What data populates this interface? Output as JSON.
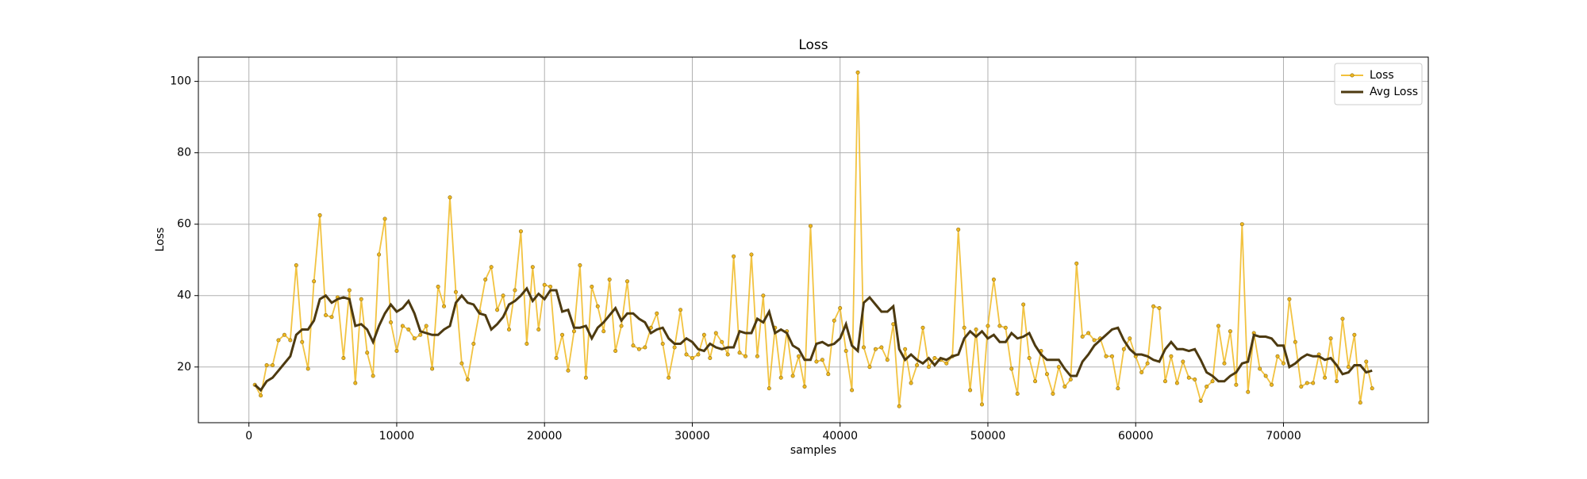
{
  "chart_data": {
    "type": "line",
    "title": "Loss",
    "x_label": "samples",
    "y_label": "Loss",
    "x": [
      400,
      800,
      1200,
      1600,
      2000,
      2400,
      2800,
      3200,
      3600,
      4000,
      4400,
      4800,
      5200,
      5600,
      6000,
      6400,
      6800,
      7200,
      7600,
      8000,
      8400,
      8800,
      9200,
      9600,
      10000,
      10400,
      10800,
      11200,
      11600,
      12000,
      12400,
      12800,
      13200,
      13600,
      14000,
      14400,
      14800,
      15200,
      15600,
      16000,
      16400,
      16800,
      17200,
      17600,
      18000,
      18400,
      18800,
      19200,
      19600,
      20000,
      20400,
      20800,
      21200,
      21600,
      22000,
      22400,
      22800,
      23200,
      23600,
      24000,
      24400,
      24800,
      25200,
      25600,
      26000,
      26400,
      26800,
      27200,
      27600,
      28000,
      28400,
      28800,
      29200,
      29600,
      30000,
      30400,
      30800,
      31200,
      31600,
      32000,
      32400,
      32800,
      33200,
      33600,
      34000,
      34400,
      34800,
      35200,
      35600,
      36000,
      36400,
      36800,
      37200,
      37600,
      38000,
      38400,
      38800,
      39200,
      39600,
      40000,
      40400,
      40800,
      41200,
      41600,
      42000,
      42400,
      42800,
      43200,
      43600,
      44000,
      44400,
      44800,
      45200,
      45600,
      46000,
      46400,
      46800,
      47200,
      47600,
      48000,
      48400,
      48800,
      49200,
      49600,
      50000,
      50400,
      50800,
      51200,
      51600,
      52000,
      52400,
      52800,
      53200,
      53600,
      54000,
      54400,
      54800,
      55200,
      55600,
      56000,
      56400,
      56800,
      57200,
      57600,
      58000,
      58400,
      58800,
      59200,
      59600,
      60000,
      60400,
      60800,
      61200,
      61600,
      62000,
      62400,
      62800,
      63200,
      63600,
      64000,
      64400,
      64800,
      65200,
      65600,
      66000,
      66400,
      66800,
      67200,
      67600,
      68000,
      68400,
      68800,
      69200,
      69600,
      70000,
      70400,
      70800,
      71200,
      71600,
      72000,
      72400,
      72800,
      73200,
      73600,
      74000,
      74400,
      74800,
      75200,
      75600,
      76000
    ],
    "series": [
      {
        "name": "Loss",
        "color": "#f0b820",
        "values": [
          15,
          12,
          20.5,
          20.5,
          27.5,
          29,
          27.5,
          48.5,
          27,
          19.5,
          44,
          62.5,
          34.5,
          34,
          39.5,
          22.5,
          41.5,
          15.5,
          39,
          24,
          17.5,
          51.5,
          61.5,
          32.5,
          24.5,
          31.5,
          30.5,
          28,
          29,
          31.5,
          19.5,
          42.5,
          37,
          67.5,
          41,
          21,
          16.5,
          26.5,
          35.5,
          44.5,
          48,
          36,
          40,
          30.5,
          41.5,
          58,
          26.5,
          48,
          30.5,
          43,
          42.5,
          22.5,
          29,
          19,
          30,
          48.5,
          17,
          42.5,
          37,
          30,
          44.5,
          24.5,
          31.5,
          44,
          26,
          25,
          25.5,
          31,
          35,
          26.5,
          17,
          25.5,
          36,
          23.5,
          22.5,
          23.5,
          29,
          22.5,
          29.5,
          27,
          23.5,
          51,
          24,
          23,
          51.5,
          23,
          40,
          14,
          31,
          17,
          30,
          17.5,
          23,
          14.5,
          59.5,
          21.5,
          22,
          18,
          33,
          36.5,
          24.5,
          13.5,
          102.5,
          25.5,
          20,
          25,
          25.5,
          22,
          32,
          9,
          25,
          15.5,
          20.5,
          31,
          20,
          22.5,
          22,
          21,
          23,
          58.5,
          31,
          13.5,
          30.5,
          9.5,
          31.5,
          44.5,
          31.5,
          31,
          19.5,
          12.5,
          37.5,
          22.5,
          16,
          24.5,
          18,
          12.5,
          20,
          14.5,
          16.5,
          49,
          28.5,
          29.5,
          27.5,
          28,
          23,
          23,
          14,
          25,
          28,
          23,
          18.5,
          21,
          37,
          36.5,
          16,
          23,
          15.5,
          21.5,
          17,
          16.5,
          10.5,
          14.5,
          16,
          31.5,
          21,
          30,
          15,
          60,
          13,
          29.5,
          19.5,
          17.5,
          15,
          23,
          21,
          39,
          27,
          14.5,
          15.5,
          15.5,
          23.5,
          17,
          28,
          16,
          33.5,
          20,
          29,
          10,
          21.5,
          14
        ]
      },
      {
        "name": "Avg Loss",
        "color": "#4d3a10",
        "values": [
          15,
          13.5,
          16,
          17,
          19,
          21,
          23,
          29,
          30.5,
          30.5,
          33,
          39,
          40,
          38,
          39,
          39.5,
          39,
          31.5,
          32,
          30.5,
          27,
          31.5,
          35,
          37.5,
          35.5,
          36.5,
          38.5,
          35,
          30,
          29.5,
          29,
          29,
          30.5,
          31.5,
          38,
          40,
          38,
          37.5,
          35,
          34.5,
          30.5,
          32,
          34,
          37.5,
          38.5,
          40,
          42,
          38.5,
          40.5,
          39,
          41.5,
          41.5,
          35.5,
          36,
          31,
          31,
          31.5,
          28,
          31,
          32.5,
          34.5,
          36.5,
          33,
          35,
          35,
          33.5,
          32.5,
          29.5,
          30.5,
          31,
          28,
          26.5,
          26.5,
          28,
          27,
          25,
          24.5,
          26.5,
          25.5,
          25,
          25.5,
          25.5,
          30,
          29.5,
          29.5,
          33.5,
          32.5,
          35.5,
          29.5,
          30.5,
          29.5,
          26,
          25,
          22,
          22,
          26.5,
          27,
          26,
          26.5,
          28,
          32,
          26,
          24.5,
          38,
          39.5,
          37.5,
          35.5,
          35.5,
          37,
          25,
          22,
          23.5,
          22,
          21,
          22.5,
          20.5,
          22.5,
          22,
          23,
          23.5,
          28,
          30,
          28.5,
          30,
          28,
          29,
          27,
          27,
          29.5,
          28,
          28.5,
          29.5,
          26,
          23.5,
          22,
          22,
          22,
          19.5,
          17.5,
          17.5,
          21.5,
          23.5,
          26,
          27.5,
          29,
          30.5,
          31,
          27.5,
          25,
          23.5,
          23.5,
          23,
          22,
          21.5,
          25,
          27,
          25,
          25,
          24.5,
          25,
          22,
          18.5,
          17.5,
          16,
          16,
          17.5,
          18.5,
          21,
          21.5,
          29,
          28.5,
          28.5,
          28,
          26,
          26,
          20,
          21,
          22.5,
          23.5,
          23,
          23,
          22,
          22.5,
          20.5,
          18,
          18.5,
          20.5,
          20.5,
          18.5,
          19
        ]
      }
    ],
    "xlim": [
      -3420,
      79800
    ],
    "ylim": [
      4.4,
      106.8
    ],
    "xticks": [
      0,
      10000,
      20000,
      30000,
      40000,
      50000,
      60000,
      70000
    ],
    "yticks": [
      20,
      40,
      60,
      80,
      100
    ],
    "grid": true,
    "legend": "upper right"
  }
}
